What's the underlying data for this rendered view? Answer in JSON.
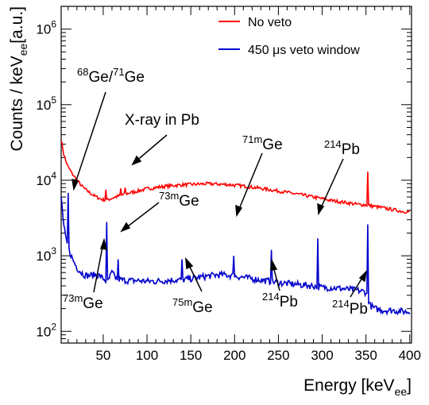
{
  "chart_data": {
    "type": "line",
    "xlabel": "Energy [keV",
    "xlabel_sub": "ee",
    "xlabel_close": "]",
    "ylabel": "Counts / keV",
    "ylabel_sub": "ee",
    "ylabel_tail": "[a.u.]",
    "xlim": [
      2,
      402
    ],
    "ylim": [
      70,
      2000000
    ],
    "yscale": "log",
    "legend_position": "top-right",
    "x_ticks": [
      "50",
      "100",
      "150",
      "200",
      "250",
      "300",
      "350",
      "400"
    ],
    "y_ticks": [
      {
        "base": "10",
        "exp": "2"
      },
      {
        "base": "10",
        "exp": "3"
      },
      {
        "base": "10",
        "exp": "4"
      },
      {
        "base": "10",
        "exp": "5"
      },
      {
        "base": "10",
        "exp": "6"
      }
    ],
    "series": [
      {
        "name": "No veto",
        "color": "#ff0000",
        "x": [
          2,
          5,
          8,
          10,
          15,
          20,
          25,
          30,
          35,
          40,
          45,
          50,
          55,
          60,
          70,
          80,
          90,
          100,
          110,
          120,
          130,
          140,
          150,
          160,
          170,
          180,
          190,
          200,
          210,
          220,
          230,
          240,
          250,
          260,
          270,
          280,
          290,
          300,
          310,
          320,
          330,
          340,
          350,
          360,
          370,
          380,
          390,
          400
        ],
        "y": [
          35000,
          22000,
          17000,
          15000,
          12000,
          10000,
          8500,
          7500,
          6800,
          6200,
          5800,
          5500,
          5500,
          5800,
          6300,
          6800,
          7200,
          7700,
          8000,
          8300,
          8500,
          8700,
          8800,
          8900,
          9000,
          8900,
          8800,
          8600,
          8400,
          8100,
          7800,
          7500,
          7200,
          6900,
          6600,
          6300,
          6000,
          5700,
          5400,
          5200,
          5000,
          4800,
          4700,
          4500,
          4300,
          4100,
          3900,
          3800
        ]
      },
      {
        "name": "450 μs veto window",
        "color": "#0000cc",
        "x": [
          2,
          5,
          8,
          10,
          15,
          20,
          25,
          30,
          35,
          40,
          45,
          50,
          55,
          60,
          65,
          70,
          80,
          90,
          100,
          110,
          120,
          130,
          140,
          150,
          160,
          170,
          180,
          190,
          200,
          210,
          220,
          230,
          240,
          250,
          260,
          270,
          280,
          290,
          300,
          310,
          320,
          330,
          340,
          350,
          355,
          360,
          370,
          380,
          390,
          400
        ],
        "y": [
          6000,
          2500,
          1500,
          1300,
          900,
          700,
          600,
          550,
          550,
          560,
          550,
          500,
          450,
          600,
          500,
          480,
          470,
          470,
          460,
          460,
          470,
          480,
          480,
          500,
          520,
          540,
          560,
          560,
          540,
          520,
          500,
          480,
          460,
          440,
          430,
          420,
          410,
          400,
          380,
          380,
          370,
          360,
          350,
          330,
          220,
          200,
          190,
          190,
          185,
          180
        ]
      }
    ],
    "peaks": [
      {
        "series": 0,
        "x": 53,
        "y": 7500
      },
      {
        "series": 0,
        "x": 70,
        "y": 7800
      },
      {
        "series": 0,
        "x": 75,
        "y": 8000
      },
      {
        "series": 0,
        "x": 352,
        "y": 13000
      },
      {
        "series": 1,
        "x": 10,
        "y": 6800
      },
      {
        "series": 1,
        "x": 54,
        "y": 2800
      },
      {
        "series": 1,
        "x": 67,
        "y": 900
      },
      {
        "series": 1,
        "x": 140,
        "y": 900
      },
      {
        "series": 1,
        "x": 199,
        "y": 1000
      },
      {
        "series": 1,
        "x": 242,
        "y": 1200
      },
      {
        "series": 1,
        "x": 295,
        "y": 1700
      },
      {
        "series": 1,
        "x": 352,
        "y": 2600
      }
    ],
    "annotations": [
      {
        "sup": "68",
        "text": "Ge/",
        "sup2": "71",
        "text2": "Ge"
      },
      {
        "sup": "",
        "text": "X-ray in Pb",
        "sup2": "",
        "text2": ""
      },
      {
        "sup": "71m",
        "text": "Ge",
        "sup2": "",
        "text2": ""
      },
      {
        "sup": "214",
        "text": "Pb",
        "sup2": "",
        "text2": ""
      },
      {
        "sup": "73m",
        "text": "Ge",
        "sup2": "",
        "text2": ""
      },
      {
        "sup": "73m",
        "text": "Ge",
        "sup2": "",
        "text2": ""
      },
      {
        "sup": "75m",
        "text": "Ge",
        "sup2": "",
        "text2": ""
      },
      {
        "sup": "214",
        "text": "Pb",
        "sup2": "",
        "text2": ""
      },
      {
        "sup": "214",
        "text": "Pb",
        "sup2": "",
        "text2": ""
      }
    ]
  }
}
